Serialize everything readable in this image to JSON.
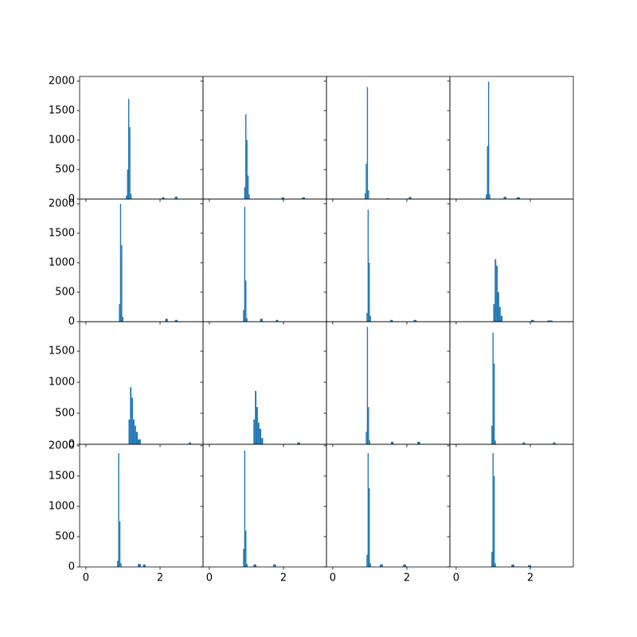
{
  "chart_data": [
    {
      "type": "histogram",
      "bins": [
        1.08,
        1.11,
        1.14,
        1.17,
        1.2,
        1.23,
        2.05,
        2.12,
        2.4,
        2.47
      ],
      "counts": [
        60,
        500,
        1700,
        1220,
        90,
        0,
        30,
        0,
        40
      ],
      "color": "#1f77b4",
      "xlim": [
        -0.17,
        3.16
      ],
      "ylim": [
        0,
        2080
      ],
      "xticks": [
        0,
        2
      ],
      "yticks": [
        0,
        500,
        1000,
        1500,
        2000
      ]
    },
    {
      "type": "histogram",
      "bins": [
        0.94,
        0.97,
        1.0,
        1.03,
        1.06,
        1.09,
        1.95,
        2.02,
        2.5,
        2.58
      ],
      "counts": [
        200,
        1440,
        1000,
        400,
        80,
        0,
        30,
        0,
        30
      ],
      "color": "#1f77b4",
      "xlim": [
        -0.17,
        3.16
      ],
      "ylim": [
        0,
        2080
      ],
      "xticks": [
        0,
        2
      ],
      "yticks": [
        0,
        500,
        1000,
        1500,
        2000
      ]
    },
    {
      "type": "histogram",
      "bins": [
        0.86,
        0.89,
        0.92,
        0.95,
        0.98,
        1.45,
        1.52,
        2.05,
        2.12
      ],
      "counts": [
        100,
        600,
        1900,
        150,
        0,
        15,
        0,
        35
      ],
      "color": "#1f77b4",
      "xlim": [
        -0.17,
        3.16
      ],
      "ylim": [
        0,
        2080
      ],
      "xticks": [
        0,
        2
      ],
      "yticks": [
        0,
        500,
        1000,
        1500,
        2000
      ]
    },
    {
      "type": "histogram",
      "bins": [
        0.8,
        0.83,
        0.86,
        0.89,
        0.92,
        1.28,
        1.35,
        1.63,
        1.72
      ],
      "counts": [
        80,
        900,
        1990,
        80,
        0,
        40,
        0,
        30
      ],
      "color": "#1f77b4",
      "xlim": [
        -0.17,
        3.16
      ],
      "ylim": [
        0,
        2080
      ],
      "xticks": [
        0,
        2
      ],
      "yticks": [
        0,
        500,
        1000,
        1500,
        2000
      ]
    },
    {
      "type": "histogram",
      "bins": [
        0.89,
        0.92,
        0.95,
        0.98,
        1.01,
        2.14,
        2.21,
        2.4,
        2.47
      ],
      "counts": [
        300,
        2000,
        1300,
        80,
        0,
        50,
        0,
        30
      ],
      "color": "#1f77b4",
      "xlim": [
        -0.17,
        3.16
      ],
      "ylim": [
        0,
        2080
      ],
      "xticks": [
        0,
        2
      ],
      "yticks": [
        0,
        500,
        1000,
        1500,
        2000
      ]
    },
    {
      "type": "histogram",
      "bins": [
        0.91,
        0.94,
        0.97,
        1.0,
        1.03,
        1.37,
        1.44,
        1.79,
        1.86
      ],
      "counts": [
        200,
        1950,
        700,
        60,
        0,
        50,
        0,
        30
      ],
      "color": "#1f77b4",
      "xlim": [
        -0.17,
        3.16
      ],
      "ylim": [
        0,
        2080
      ],
      "xticks": [
        0,
        2
      ],
      "yticks": [
        0,
        500,
        1000,
        1500,
        2000
      ]
    },
    {
      "type": "histogram",
      "bins": [
        0.91,
        0.94,
        0.97,
        1.0,
        1.03,
        1.55,
        1.62,
        2.18,
        2.26
      ],
      "counts": [
        150,
        1900,
        1000,
        100,
        0,
        30,
        0,
        30
      ],
      "color": "#1f77b4",
      "xlim": [
        -0.17,
        3.16
      ],
      "ylim": [
        0,
        2080
      ],
      "xticks": [
        0,
        2
      ],
      "yticks": [
        0,
        500,
        1000,
        1500,
        2000
      ]
    },
    {
      "type": "histogram",
      "bins": [
        1.0,
        1.04,
        1.08,
        1.12,
        1.16,
        1.2,
        1.25,
        2.02,
        2.1,
        2.46,
        2.6
      ],
      "counts": [
        300,
        1060,
        950,
        500,
        250,
        100,
        0,
        30,
        0,
        20
      ],
      "color": "#1f77b4",
      "xlim": [
        -0.17,
        3.16
      ],
      "ylim": [
        0,
        2080
      ],
      "xticks": [
        0,
        2
      ],
      "yticks": [
        0,
        500,
        1000,
        1500,
        2000
      ]
    },
    {
      "type": "histogram",
      "bins": [
        1.15,
        1.19,
        1.23,
        1.27,
        1.31,
        1.35,
        1.4,
        1.48,
        2.77,
        2.84
      ],
      "counts": [
        400,
        920,
        750,
        400,
        300,
        200,
        80,
        0,
        30
      ],
      "color": "#1f77b4",
      "xlim": [
        -0.17,
        3.16
      ],
      "ylim": [
        0,
        1975
      ],
      "xticks": [
        0,
        2
      ],
      "yticks": [
        0,
        500,
        1000,
        1500
      ]
    },
    {
      "type": "histogram",
      "bins": [
        1.19,
        1.23,
        1.27,
        1.31,
        1.35,
        1.4,
        1.45,
        2.37,
        2.45
      ],
      "counts": [
        400,
        860,
        600,
        350,
        250,
        100,
        0,
        30
      ],
      "color": "#1f77b4",
      "xlim": [
        -0.17,
        3.16
      ],
      "ylim": [
        0,
        1975
      ],
      "xticks": [
        0,
        2
      ],
      "yticks": [
        0,
        500,
        1000,
        1500
      ]
    },
    {
      "type": "histogram",
      "bins": [
        0.89,
        0.92,
        0.95,
        0.98,
        1.01,
        1.57,
        1.64,
        2.28,
        2.36
      ],
      "counts": [
        200,
        1890,
        600,
        60,
        0,
        40,
        0,
        40
      ],
      "color": "#1f77b4",
      "xlim": [
        -0.17,
        3.16
      ],
      "ylim": [
        0,
        1975
      ],
      "xticks": [
        0,
        2
      ],
      "yticks": [
        0,
        500,
        1000,
        1500
      ]
    },
    {
      "type": "histogram",
      "bins": [
        0.95,
        0.98,
        1.01,
        1.04,
        1.07,
        1.79,
        1.86,
        2.61,
        2.68
      ],
      "counts": [
        300,
        1800,
        1300,
        60,
        0,
        30,
        0,
        30
      ],
      "color": "#1f77b4",
      "xlim": [
        -0.17,
        3.16
      ],
      "ylim": [
        0,
        1975
      ],
      "xticks": [
        0,
        2
      ],
      "yticks": [
        0,
        500,
        1000,
        1500
      ]
    },
    {
      "type": "histogram",
      "bins": [
        0.84,
        0.87,
        0.9,
        0.93,
        0.96,
        1.4,
        1.48,
        1.54,
        1.61
      ],
      "counts": [
        100,
        1880,
        750,
        60,
        0,
        50,
        0,
        40
      ],
      "color": "#1f77b4",
      "xlim": [
        -0.17,
        3.16
      ],
      "ylim": [
        0,
        2025
      ],
      "xticks": [
        0,
        2
      ],
      "yticks": [
        0,
        500,
        1000,
        1500,
        2000
      ]
    },
    {
      "type": "histogram",
      "bins": [
        0.91,
        0.94,
        0.97,
        1.0,
        1.03,
        1.19,
        1.27,
        1.72,
        1.8
      ],
      "counts": [
        300,
        1920,
        600,
        50,
        0,
        40,
        0,
        40
      ],
      "color": "#1f77b4",
      "xlim": [
        -0.17,
        3.16
      ],
      "ylim": [
        0,
        2025
      ],
      "xticks": [
        0,
        2
      ],
      "yticks": [
        0,
        500,
        1000,
        1500,
        2000
      ]
    },
    {
      "type": "histogram",
      "bins": [
        0.91,
        0.94,
        0.97,
        1.0,
        1.03,
        1.27,
        1.35,
        1.9,
        1.98
      ],
      "counts": [
        200,
        1880,
        1300,
        60,
        0,
        40,
        0,
        40
      ],
      "color": "#1f77b4",
      "xlim": [
        -0.17,
        3.16
      ],
      "ylim": [
        0,
        2025
      ],
      "xticks": [
        0,
        2
      ],
      "yticks": [
        0,
        500,
        1000,
        1500,
        2000
      ]
    },
    {
      "type": "histogram",
      "bins": [
        0.95,
        0.98,
        1.01,
        1.04,
        1.07,
        1.49,
        1.57,
        1.94,
        2.02
      ],
      "counts": [
        250,
        1880,
        1500,
        60,
        0,
        40,
        0,
        30
      ],
      "color": "#1f77b4",
      "xlim": [
        -0.17,
        3.16
      ],
      "ylim": [
        0,
        2025
      ],
      "xticks": [
        0,
        2
      ],
      "yticks": [
        0,
        500,
        1000,
        1500,
        2000
      ]
    }
  ]
}
